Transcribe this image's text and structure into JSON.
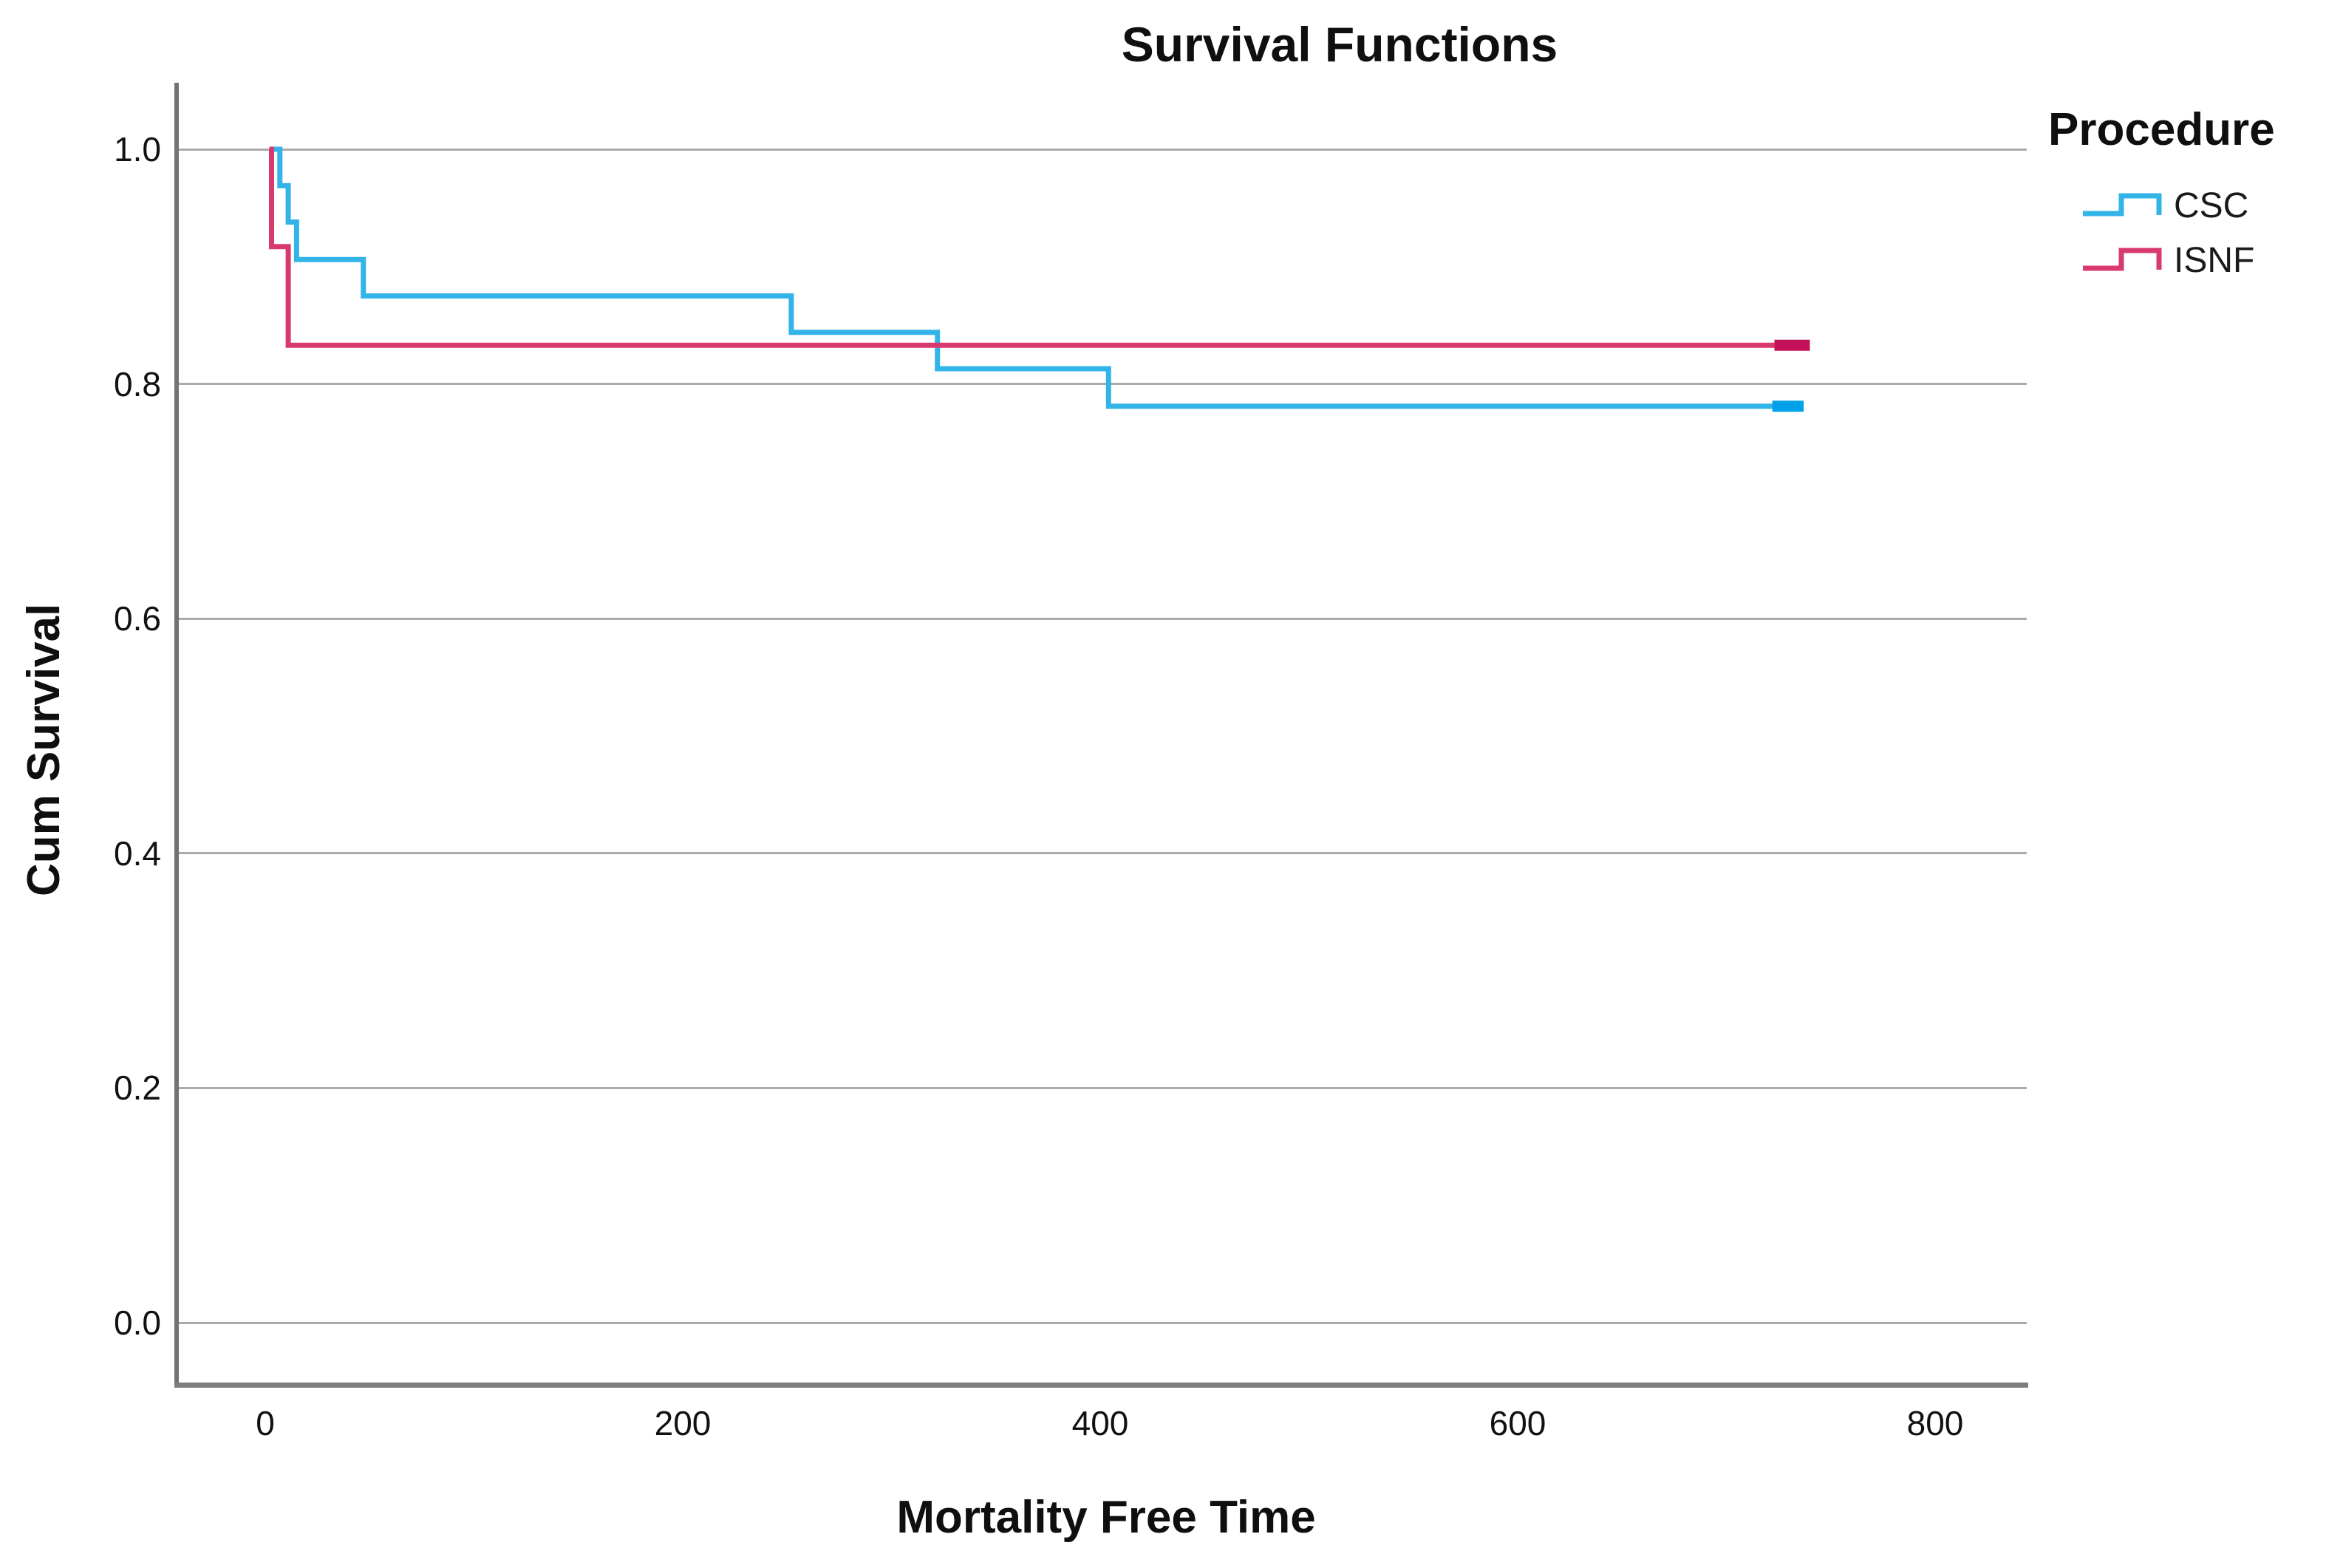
{
  "chart_data": {
    "type": "line",
    "subtype": "kaplan-meier-step-survival",
    "title": "Survival Functions",
    "xlabel": "Mortality Free Time",
    "ylabel": "Cum Survival",
    "grid": "horizontal",
    "legend_position": "top-right",
    "xlim": [
      -41,
      844
    ],
    "ylim": [
      -0.03,
      1.06
    ],
    "x_ticks": [
      0,
      200,
      400,
      600,
      800
    ],
    "y_ticks": [
      {
        "label": "1.0",
        "value": 1.0
      },
      {
        "label": "0.8",
        "value": 0.8
      },
      {
        "label": "0.6",
        "value": 0.6
      },
      {
        "label": "0.4",
        "value": 0.4
      },
      {
        "label": "0.2",
        "value": 0.2
      },
      {
        "label": "0.0",
        "value": 0.0
      }
    ],
    "legend": {
      "title": "Procedure"
    },
    "series": [
      {
        "name": "CSC",
        "color": "#33B4E9",
        "censor_color": "#00A1E9",
        "steps": [
          [
            2,
            1.0
          ],
          [
            7,
            1.0
          ],
          [
            7,
            0.969
          ],
          [
            11,
            0.969
          ],
          [
            11,
            0.938
          ],
          [
            15,
            0.938
          ],
          [
            15,
            0.906
          ],
          [
            47,
            0.906
          ],
          [
            47,
            0.875
          ],
          [
            252,
            0.875
          ],
          [
            252,
            0.844
          ],
          [
            322,
            0.844
          ],
          [
            322,
            0.813
          ],
          [
            404,
            0.813
          ],
          [
            404,
            0.781
          ],
          [
            737,
            0.781
          ]
        ],
        "end_censor_mark": [
          722,
          737
        ]
      },
      {
        "name": "ISNF",
        "color": "#D93A6E",
        "censor_color": "#C3115A",
        "steps": [
          [
            2,
            1.0
          ],
          [
            3,
            1.0
          ],
          [
            3,
            0.917
          ],
          [
            11,
            0.917
          ],
          [
            11,
            0.833
          ],
          [
            740,
            0.833
          ]
        ],
        "end_censor_mark": [
          723,
          740
        ]
      }
    ],
    "colors": {
      "gridline": "#ABABAB",
      "axis_line": "#737373",
      "text": "#111111",
      "background": "#FFFFFF"
    }
  }
}
